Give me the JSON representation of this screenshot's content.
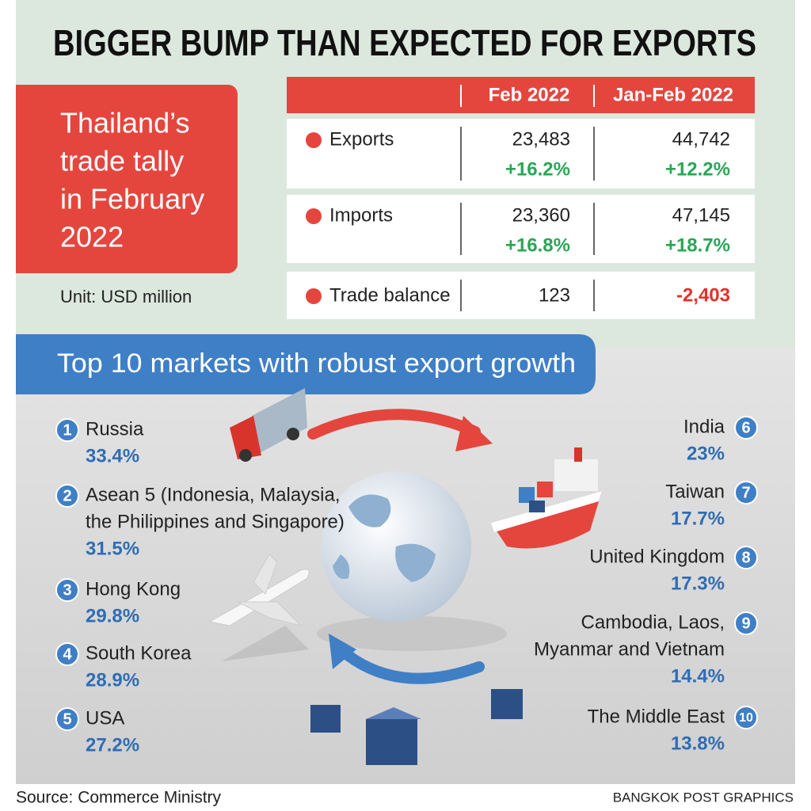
{
  "header": {
    "title": "BIGGER BUMP THAN EXPECTED FOR EXPORTS"
  },
  "panel": {
    "title_lines": [
      "Thailand’s",
      "trade tally",
      "in February",
      "2022"
    ],
    "unit": "Unit: USD million"
  },
  "table": {
    "columns": [
      "Feb 2022",
      "Jan-Feb 2022"
    ],
    "rows": [
      {
        "label": "Exports",
        "values": [
          "23,483",
          "44,742"
        ],
        "changes": [
          "+16.2%",
          "+12.2%"
        ]
      },
      {
        "label": "Imports",
        "values": [
          "23,360",
          "47,145"
        ],
        "changes": [
          "+16.8%",
          "+18.7%"
        ]
      },
      {
        "label": "Trade balance",
        "values": [
          "123",
          "-2,403"
        ]
      }
    ]
  },
  "markets": {
    "title": "Top 10 markets with robust export growth",
    "items": [
      {
        "rank": "1",
        "name": [
          "Russia"
        ],
        "growth": "33.4%"
      },
      {
        "rank": "2",
        "name": [
          "Asean 5 (Indonesia, Malaysia,",
          "the Philippines and Singapore)"
        ],
        "growth": "31.5%"
      },
      {
        "rank": "3",
        "name": [
          "Hong Kong"
        ],
        "growth": "29.8%"
      },
      {
        "rank": "4",
        "name": [
          "South Korea"
        ],
        "growth": "28.9%"
      },
      {
        "rank": "5",
        "name": [
          "USA"
        ],
        "growth": "27.2%"
      },
      {
        "rank": "6",
        "name": [
          "India"
        ],
        "growth": "23%"
      },
      {
        "rank": "7",
        "name": [
          "Taiwan"
        ],
        "growth": "17.7%"
      },
      {
        "rank": "8",
        "name": [
          "United Kingdom"
        ],
        "growth": "17.3%"
      },
      {
        "rank": "9",
        "name": [
          "Cambodia, Laos,",
          "Myanmar and Vietnam"
        ],
        "growth": "14.4%"
      },
      {
        "rank": "10",
        "name": [
          "The Middle East"
        ],
        "growth": "13.8%"
      }
    ]
  },
  "footer": {
    "source": "Source: Commerce Ministry",
    "credit": "BANGKOK POST GRAPHICS"
  }
}
